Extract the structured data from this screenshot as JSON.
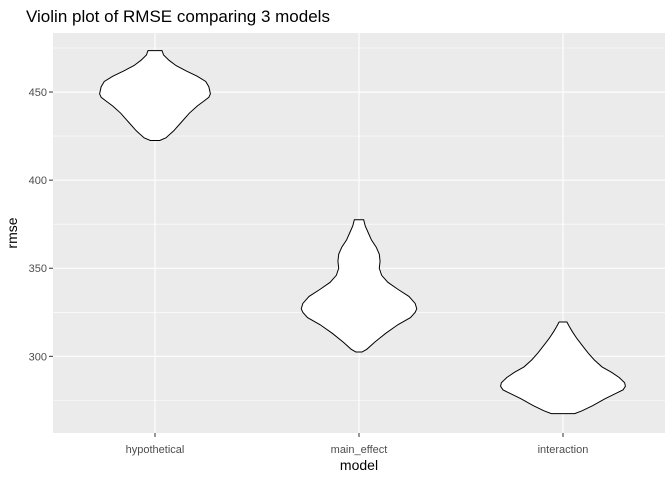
{
  "chart_data": {
    "type": "violin",
    "title": "Violin plot of RMSE comparing 3 models",
    "xlabel": "model",
    "ylabel": "rmse",
    "categories": [
      "hypothetical",
      "main_effect",
      "interaction"
    ],
    "y_ticks": [
      300,
      350,
      400,
      450
    ],
    "ylim": [
      256.5,
      483.5
    ],
    "grid": true,
    "background_color": "#ebebeb",
    "grid_color": "#ffffff",
    "violin_fill": "#ffffff",
    "violin_stroke": "#000000",
    "violins": [
      {
        "category": "hypothetical",
        "min": 422.5,
        "max": 473.5,
        "profile": [
          {
            "y": 422.5,
            "hw": 0.06
          },
          {
            "y": 424,
            "hw": 0.14
          },
          {
            "y": 428,
            "hw": 0.24
          },
          {
            "y": 433,
            "hw": 0.34
          },
          {
            "y": 438,
            "hw": 0.44
          },
          {
            "y": 442,
            "hw": 0.54
          },
          {
            "y": 445,
            "hw": 0.63
          },
          {
            "y": 447,
            "hw": 0.69
          },
          {
            "y": 449,
            "hw": 0.71
          },
          {
            "y": 451,
            "hw": 0.7
          },
          {
            "y": 453,
            "hw": 0.69
          },
          {
            "y": 456,
            "hw": 0.65
          },
          {
            "y": 459,
            "hw": 0.54
          },
          {
            "y": 462,
            "hw": 0.4
          },
          {
            "y": 465,
            "hw": 0.27
          },
          {
            "y": 468,
            "hw": 0.18
          },
          {
            "y": 471,
            "hw": 0.11
          },
          {
            "y": 473.5,
            "hw": 0.09
          }
        ]
      },
      {
        "category": "main_effect",
        "min": 302.5,
        "max": 377.5,
        "profile": [
          {
            "y": 302.5,
            "hw": 0.04
          },
          {
            "y": 304,
            "hw": 0.1
          },
          {
            "y": 308,
            "hw": 0.2
          },
          {
            "y": 313,
            "hw": 0.34
          },
          {
            "y": 318,
            "hw": 0.5
          },
          {
            "y": 322,
            "hw": 0.66
          },
          {
            "y": 325,
            "hw": 0.72
          },
          {
            "y": 327,
            "hw": 0.74
          },
          {
            "y": 330,
            "hw": 0.72
          },
          {
            "y": 334,
            "hw": 0.64
          },
          {
            "y": 338,
            "hw": 0.5
          },
          {
            "y": 342,
            "hw": 0.37
          },
          {
            "y": 346,
            "hw": 0.29
          },
          {
            "y": 350,
            "hw": 0.26
          },
          {
            "y": 354,
            "hw": 0.27
          },
          {
            "y": 358,
            "hw": 0.26
          },
          {
            "y": 362,
            "hw": 0.22
          },
          {
            "y": 366,
            "hw": 0.16
          },
          {
            "y": 370,
            "hw": 0.12
          },
          {
            "y": 374,
            "hw": 0.08
          },
          {
            "y": 377.5,
            "hw": 0.06
          }
        ]
      },
      {
        "category": "interaction",
        "min": 267.5,
        "max": 319.5,
        "profile": [
          {
            "y": 267.5,
            "hw": 0.15
          },
          {
            "y": 269,
            "hw": 0.24
          },
          {
            "y": 272,
            "hw": 0.38
          },
          {
            "y": 276,
            "hw": 0.54
          },
          {
            "y": 279,
            "hw": 0.68
          },
          {
            "y": 281,
            "hw": 0.77
          },
          {
            "y": 283,
            "hw": 0.8
          },
          {
            "y": 285,
            "hw": 0.79
          },
          {
            "y": 288,
            "hw": 0.72
          },
          {
            "y": 291,
            "hw": 0.62
          },
          {
            "y": 294,
            "hw": 0.5
          },
          {
            "y": 298,
            "hw": 0.4
          },
          {
            "y": 302,
            "hw": 0.32
          },
          {
            "y": 306,
            "hw": 0.25
          },
          {
            "y": 310,
            "hw": 0.18
          },
          {
            "y": 314,
            "hw": 0.12
          },
          {
            "y": 317,
            "hw": 0.08
          },
          {
            "y": 319.5,
            "hw": 0.05
          }
        ]
      }
    ]
  }
}
